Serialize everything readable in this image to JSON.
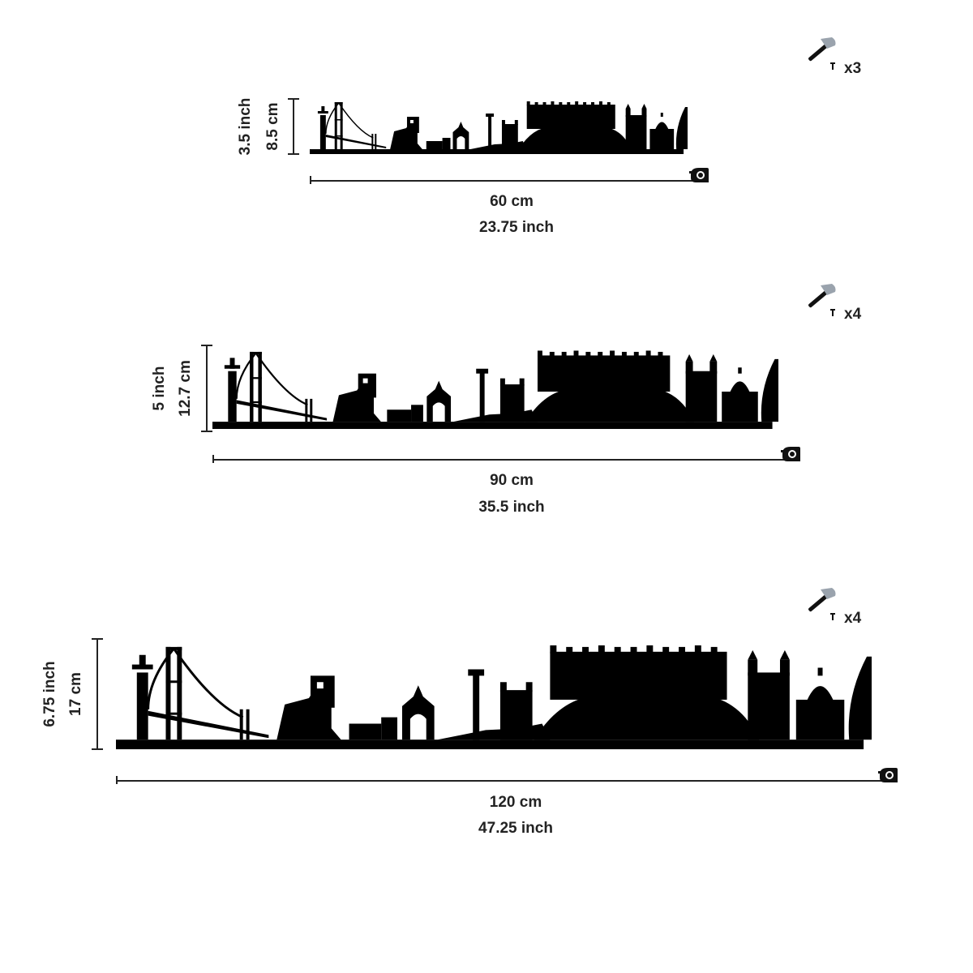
{
  "variants": [
    {
      "height_inch": "3.5 inch",
      "height_cm": "8.5 cm",
      "width_cm": "60 cm",
      "width_inch": "23.75 inch",
      "nails": "x3",
      "nail_icon": "hammer-nail-icon",
      "tape_icon": "tape-measure-icon"
    },
    {
      "height_inch": "5 inch",
      "height_cm": "12.7 cm",
      "width_cm": "90 cm",
      "width_inch": "35.5 inch",
      "nails": "x4",
      "nail_icon": "hammer-nail-icon",
      "tape_icon": "tape-measure-icon"
    },
    {
      "height_inch": "6.75 inch",
      "height_cm": "17 cm",
      "width_cm": "120 cm",
      "width_inch": "47.25 inch",
      "nails": "x4",
      "nail_icon": "hammer-nail-icon",
      "tape_icon": "tape-measure-icon"
    }
  ],
  "colors": {
    "silhouette": "#000000",
    "text": "#222222",
    "hammer_head": "#9aa3ad"
  }
}
